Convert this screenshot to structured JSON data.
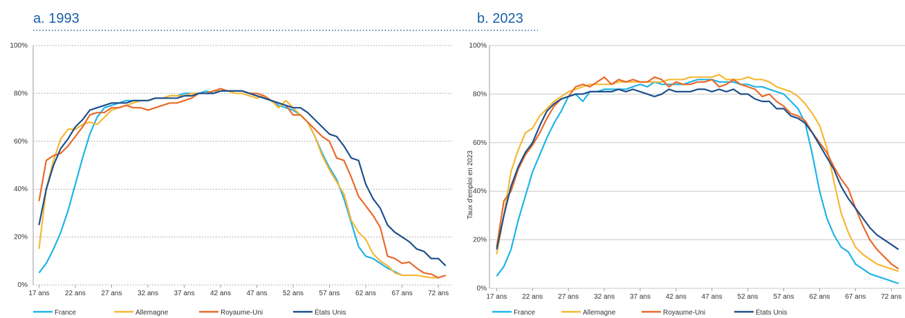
{
  "chart_data": [
    {
      "type": "line",
      "title": "a. 1993",
      "x": [
        17,
        18,
        19,
        20,
        21,
        22,
        23,
        24,
        25,
        26,
        27,
        28,
        29,
        30,
        31,
        32,
        33,
        34,
        35,
        36,
        37,
        38,
        39,
        40,
        41,
        42,
        43,
        44,
        45,
        46,
        47,
        48,
        49,
        50,
        51,
        52,
        53,
        54,
        55,
        56,
        57,
        58,
        59,
        60,
        61,
        62,
        63,
        64,
        65,
        66,
        67,
        68,
        69,
        70,
        71,
        72,
        73
      ],
      "xlim": [
        16.2,
        73.8
      ],
      "xticks": [
        {
          "value": 17,
          "label": "17 ans"
        },
        {
          "value": 22,
          "label": "22 ans"
        },
        {
          "value": 27,
          "label": "27 ans"
        },
        {
          "value": 32,
          "label": "32 ans"
        },
        {
          "value": 37,
          "label": "37 ans"
        },
        {
          "value": 42,
          "label": "42 ans"
        },
        {
          "value": 47,
          "label": "47 ans"
        },
        {
          "value": 52,
          "label": "52 ans"
        },
        {
          "value": 57,
          "label": "57 ans"
        },
        {
          "value": 62,
          "label": "62 ans"
        },
        {
          "value": 67,
          "label": "67 ans"
        },
        {
          "value": 72,
          "label": "72 ans"
        }
      ],
      "ylim": [
        0,
        100
      ],
      "yticks": [
        {
          "value": 0,
          "label": "0%"
        },
        {
          "value": 20,
          "label": "20%"
        },
        {
          "value": 40,
          "label": "40%"
        },
        {
          "value": 60,
          "label": "60%"
        },
        {
          "value": 80,
          "label": "80%"
        },
        {
          "value": 100,
          "label": "100%"
        }
      ],
      "grid": true,
      "grid_style": "dotted",
      "legend": "bottom",
      "series": [
        {
          "name": "France",
          "color": "#1fb3e8",
          "values": [
            5,
            9,
            15,
            22,
            31,
            42,
            53,
            63,
            70,
            74,
            75,
            76,
            77,
            77,
            77,
            77,
            78,
            78,
            79,
            79,
            80,
            80,
            80,
            81,
            80,
            81,
            81,
            81,
            81,
            80,
            79,
            78,
            77,
            75,
            74,
            73,
            71,
            68,
            62,
            55,
            49,
            44,
            36,
            26,
            16,
            12,
            11,
            9,
            7,
            5.5,
            4,
            null,
            null,
            null,
            null,
            null,
            null
          ]
        },
        {
          "name": "Allemagne",
          "color": "#f7b733",
          "values": [
            15,
            40,
            52,
            61,
            65,
            65,
            67,
            68,
            67,
            70,
            73,
            74,
            75,
            76,
            77,
            77,
            78,
            78,
            79,
            79,
            79,
            80,
            80,
            80,
            81,
            81,
            81,
            80,
            80,
            79,
            78,
            79,
            77,
            74,
            77,
            74,
            71,
            68,
            62,
            54,
            48,
            43,
            38,
            27,
            22,
            19,
            13,
            10,
            8,
            5,
            4,
            4,
            4,
            3.5,
            3,
            3,
            null
          ]
        },
        {
          "name": "Royaume-Uni",
          "color": "#e8692a",
          "values": [
            35,
            52,
            54,
            55,
            58,
            62,
            66,
            71,
            72,
            72,
            74,
            74,
            75,
            74,
            74,
            73,
            74,
            75,
            76,
            76,
            77,
            78,
            80,
            80,
            81,
            82,
            81,
            81,
            81,
            80,
            80,
            79,
            77,
            76,
            75,
            71,
            71,
            68,
            65,
            62,
            60,
            53,
            52,
            45,
            37,
            33,
            29,
            24,
            12,
            11,
            9,
            9.5,
            7,
            5,
            4.5,
            3,
            4
          ]
        },
        {
          "name": "États Unis",
          "color": "#1c4f8c",
          "values": [
            25,
            40,
            50,
            57,
            61,
            66,
            69,
            73,
            74,
            75,
            76,
            76,
            76,
            77,
            77,
            77,
            78,
            78,
            78,
            78,
            79,
            79,
            80,
            80,
            80,
            81,
            81,
            81,
            81,
            80,
            79,
            78,
            77,
            76,
            75,
            74,
            74,
            72,
            69,
            66,
            63,
            62,
            58,
            53,
            52,
            42,
            36,
            32,
            25,
            22,
            20,
            18,
            15,
            14,
            11,
            11,
            8
          ]
        }
      ]
    },
    {
      "type": "line",
      "title": "b. 2023",
      "ylabel": "Taux d'emploi en 2023",
      "x": [
        17,
        18,
        19,
        20,
        21,
        22,
        23,
        24,
        25,
        26,
        27,
        28,
        29,
        30,
        31,
        32,
        33,
        34,
        35,
        36,
        37,
        38,
        39,
        40,
        41,
        42,
        43,
        44,
        45,
        46,
        47,
        48,
        49,
        50,
        51,
        52,
        53,
        54,
        55,
        56,
        57,
        58,
        59,
        60,
        61,
        62,
        63,
        64,
        65,
        66,
        67,
        68,
        69,
        70,
        71,
        72,
        73
      ],
      "xlim": [
        16,
        73.9
      ],
      "xticks": [
        {
          "value": 17,
          "label": "17 ans"
        },
        {
          "value": 22,
          "label": "22 ans"
        },
        {
          "value": 27,
          "label": "27 ans"
        },
        {
          "value": 32,
          "label": "32 ans"
        },
        {
          "value": 37,
          "label": "37 ans"
        },
        {
          "value": 42,
          "label": "42 ans"
        },
        {
          "value": 47,
          "label": "47 ans"
        },
        {
          "value": 52,
          "label": "52 ans"
        },
        {
          "value": 57,
          "label": "57 ans"
        },
        {
          "value": 62,
          "label": "62 ans"
        },
        {
          "value": 67,
          "label": "67 ans"
        },
        {
          "value": 72,
          "label": "72 ans"
        }
      ],
      "ylim": [
        0,
        100
      ],
      "yticks": [
        {
          "value": 0,
          "label": "0%"
        },
        {
          "value": 20,
          "label": "20%"
        },
        {
          "value": 40,
          "label": "40%"
        },
        {
          "value": 60,
          "label": "60%"
        },
        {
          "value": 80,
          "label": "80%"
        },
        {
          "value": 100,
          "label": "100%"
        }
      ],
      "grid": true,
      "grid_style": "solid",
      "legend": "bottom",
      "series": [
        {
          "name": "France",
          "color": "#1fb3e8",
          "values": [
            5,
            9,
            16,
            28,
            38,
            48,
            55,
            62,
            68,
            73,
            79,
            80,
            77,
            81,
            81,
            82,
            82,
            82,
            82,
            83,
            84,
            83,
            85,
            84,
            84,
            84,
            84,
            85,
            86,
            86,
            86,
            85,
            85,
            85,
            84,
            84,
            83,
            83,
            82,
            81,
            80,
            77,
            74,
            68,
            55,
            40,
            29,
            22,
            17,
            15,
            10,
            8,
            6,
            5,
            4,
            3,
            2
          ]
        },
        {
          "name": "Allemagne",
          "color": "#f7b733",
          "values": [
            14,
            30,
            48,
            57,
            64,
            66,
            71,
            74,
            77,
            79,
            81,
            82,
            83,
            84,
            84,
            84,
            84,
            85,
            85,
            85,
            85,
            85,
            85,
            85,
            86,
            86,
            86,
            87,
            87,
            87,
            87,
            88,
            86,
            86,
            86,
            87,
            86,
            86,
            85,
            83,
            82,
            81,
            79,
            76,
            72,
            67,
            58,
            44,
            31,
            23,
            17,
            14,
            12,
            10,
            9,
            8,
            7
          ]
        },
        {
          "name": "Royaume-Uni",
          "color": "#e8692a",
          "values": [
            17,
            36,
            40,
            49,
            55,
            59,
            64,
            70,
            75,
            78,
            79,
            83,
            84,
            83,
            85,
            87,
            84,
            86,
            85,
            86,
            85,
            85,
            87,
            86,
            83,
            85,
            84,
            84,
            85,
            85,
            86,
            83,
            84,
            86,
            84,
            83,
            82,
            79,
            80,
            77,
            75,
            72,
            71,
            69,
            64,
            60,
            56,
            50,
            45,
            41,
            33,
            26,
            20,
            16,
            13,
            10,
            8
          ]
        },
        {
          "name": "États Unis",
          "color": "#1c4f8c",
          "values": [
            16,
            30,
            42,
            50,
            56,
            60,
            67,
            73,
            76,
            78,
            79,
            80,
            80,
            81,
            81,
            81,
            81,
            82,
            81,
            82,
            81,
            80,
            79,
            80,
            82,
            81,
            81,
            81,
            82,
            82,
            81,
            82,
            81,
            82,
            80,
            80,
            78,
            77,
            77,
            74,
            74,
            71,
            70,
            68,
            64,
            59,
            54,
            49,
            42,
            37,
            33,
            29,
            25,
            22,
            20,
            18,
            16
          ]
        }
      ]
    }
  ]
}
